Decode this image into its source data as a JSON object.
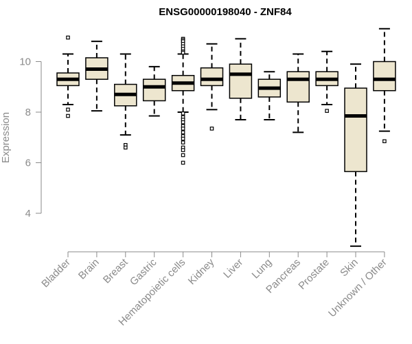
{
  "chart_data": {
    "type": "boxplot",
    "title": "ENSG00000198040 - ZNF84",
    "xlabel": "",
    "ylabel": "Expression",
    "ylim": [
      2.5,
      11.6
    ],
    "yticks": [
      4,
      6,
      8,
      10
    ],
    "colors": {
      "box_fill": "#ede6cf",
      "box_stroke": "#000000",
      "median": "#000000",
      "axis": "#8a8a8a"
    },
    "categories": [
      "Bladder",
      "Brain",
      "Breast",
      "Gastric",
      "Hematopoietic cells",
      "Kidney",
      "Liver",
      "Lung",
      "Pancreas",
      "Prostate",
      "Skin",
      "Unknown / Other"
    ],
    "boxes": [
      {
        "whisker_low": 8.3,
        "q1": 9.05,
        "median": 9.3,
        "q3": 9.55,
        "whisker_high": 10.3,
        "outliers": [
          10.95,
          8.1,
          7.85
        ]
      },
      {
        "whisker_low": 8.05,
        "q1": 9.3,
        "median": 9.7,
        "q3": 10.15,
        "whisker_high": 10.8,
        "outliers": []
      },
      {
        "whisker_low": 7.1,
        "q1": 8.25,
        "median": 8.7,
        "q3": 9.1,
        "whisker_high": 10.3,
        "outliers": [
          6.7,
          6.6
        ]
      },
      {
        "whisker_low": 7.85,
        "q1": 8.45,
        "median": 9.0,
        "q3": 9.3,
        "whisker_high": 9.8,
        "outliers": []
      },
      {
        "whisker_low": 8.0,
        "q1": 8.85,
        "median": 9.15,
        "q3": 9.45,
        "whisker_high": 10.3,
        "outliers": [
          10.9,
          10.85,
          10.8,
          10.7,
          10.6,
          10.5,
          10.4,
          10.35,
          7.95,
          7.8,
          7.7,
          7.6,
          7.45,
          7.35,
          7.2,
          7.05,
          6.95,
          6.8,
          6.6,
          6.5,
          6.3,
          6.0
        ]
      },
      {
        "whisker_low": 8.1,
        "q1": 9.05,
        "median": 9.3,
        "q3": 9.75,
        "whisker_high": 10.7,
        "outliers": [
          7.35
        ]
      },
      {
        "whisker_low": 7.7,
        "q1": 8.55,
        "median": 9.5,
        "q3": 9.9,
        "whisker_high": 10.9,
        "outliers": []
      },
      {
        "whisker_low": 7.7,
        "q1": 8.6,
        "median": 8.95,
        "q3": 9.3,
        "whisker_high": 9.6,
        "outliers": []
      },
      {
        "whisker_low": 7.2,
        "q1": 8.4,
        "median": 9.3,
        "q3": 9.6,
        "whisker_high": 10.3,
        "outliers": []
      },
      {
        "whisker_low": 8.3,
        "q1": 9.05,
        "median": 9.3,
        "q3": 9.6,
        "whisker_high": 10.4,
        "outliers": [
          8.05
        ]
      },
      {
        "whisker_low": 2.7,
        "q1": 5.65,
        "median": 7.85,
        "q3": 8.95,
        "whisker_high": 9.9,
        "outliers": []
      },
      {
        "whisker_low": 7.25,
        "q1": 8.85,
        "median": 9.3,
        "q3": 10.0,
        "whisker_high": 11.3,
        "outliers": [
          6.85
        ]
      }
    ]
  }
}
